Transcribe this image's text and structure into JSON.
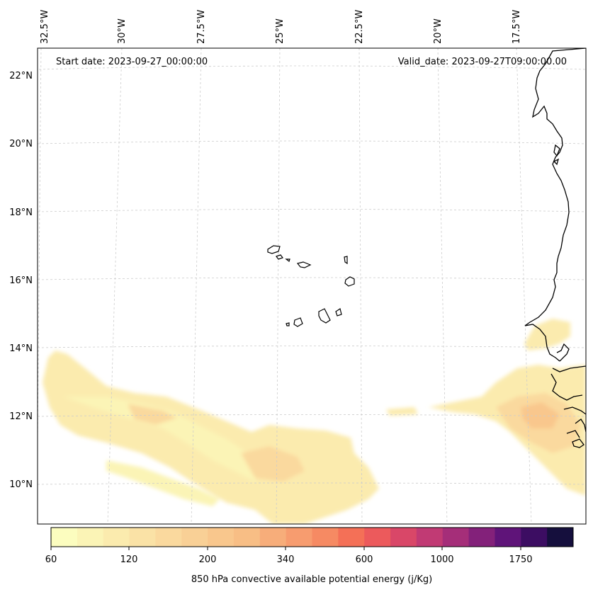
{
  "header": {
    "start_date": "Start date: 2023-09-27_00:00:00",
    "valid_date": "Valid_date: 2023-09-27T09:00:00.00"
  },
  "longitude_labels": [
    "32.5°W",
    "30°W",
    "27.5°W",
    "25°W",
    "22.5°W",
    "20°W",
    "17.5°W"
  ],
  "latitude_labels": [
    "22°N",
    "20°N",
    "18°N",
    "16°N",
    "14°N",
    "12°N",
    "10°N"
  ],
  "colorbar": {
    "title": "850 hPa convective available potential energy (j/Kg)",
    "tick_labels": [
      "60",
      "120",
      "200",
      "340",
      "600",
      "1000",
      "1750"
    ],
    "colors": [
      "#fcfdbf",
      "#fbf4b6",
      "#fbebae",
      "#fae2a6",
      "#fad99e",
      "#f9d096",
      "#f9c78d",
      "#f8be85",
      "#f7ad7a",
      "#f79c6f",
      "#f68a63",
      "#f47057",
      "#ec5a5c",
      "#d94768",
      "#c13a74",
      "#a52e79",
      "#83217a",
      "#5f1479",
      "#3c0d62",
      "#150f3d"
    ]
  },
  "map_features": {
    "coastline_color": "#000000",
    "gridline_color": "#cccccc"
  }
}
